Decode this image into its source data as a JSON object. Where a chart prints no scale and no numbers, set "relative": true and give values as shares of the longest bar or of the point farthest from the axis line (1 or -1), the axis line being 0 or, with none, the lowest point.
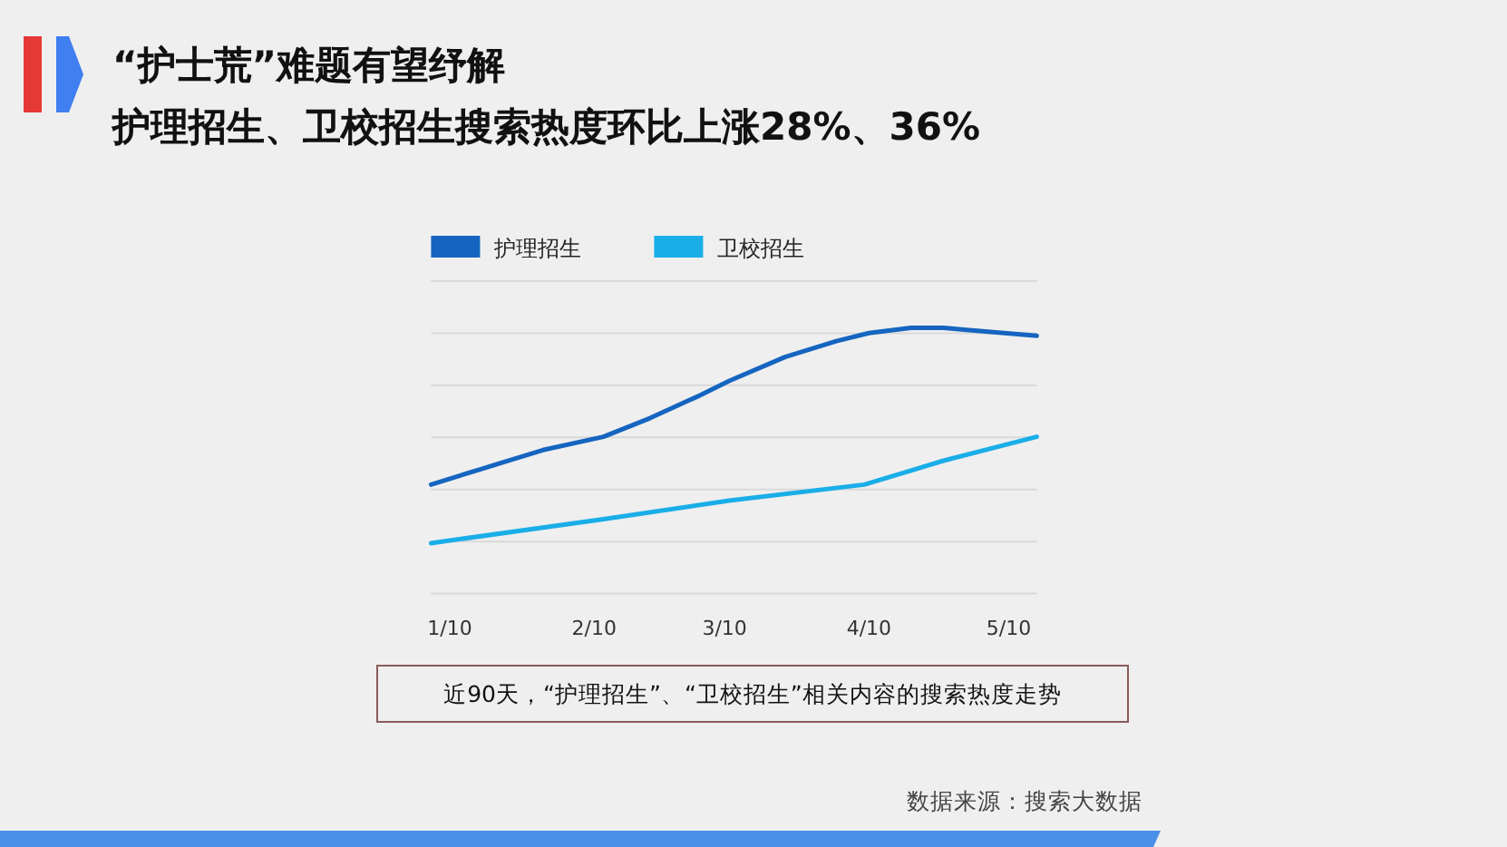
{
  "chart_data": {
    "type": "line",
    "title": "“护士荒”难题有望纾解",
    "subtitle": "护理招生、卫校招生搜索热度环比上涨28%、36%",
    "relative": true,
    "grid": "y",
    "legend": "top left",
    "xlim": [
      "--01-06",
      "--05-16"
    ],
    "xticks": [
      {
        "value": "--01-10",
        "label": "1/10"
      },
      {
        "value": "--02-10",
        "label": "2/10"
      },
      {
        "value": "--03-10",
        "label": "3/10"
      },
      {
        "value": "--04-10",
        "label": "4/10"
      },
      {
        "value": "--05-10",
        "label": "5/10"
      }
    ],
    "series": [
      {
        "name": "护理招生",
        "color": "#1565c0",
        "x": [
          "--01-06",
          "--01-17",
          "--01-30",
          "--02-12",
          "--02-22",
          "--03-04",
          "--03-11",
          "--03-23",
          "--04-03",
          "--04-10",
          "--04-19",
          "--04-26",
          "--05-02",
          "--05-09",
          "--05-16"
        ],
        "values": [
          0.41,
          0.47,
          0.54,
          0.59,
          0.66,
          0.74,
          0.8,
          0.89,
          0.95,
          0.98,
          1.0,
          1.0,
          0.99,
          0.98,
          0.97
        ]
      },
      {
        "name": "卫校招生",
        "color": "#1aaee8",
        "x": [
          "--01-06",
          "--02-12",
          "--03-11",
          "--04-09",
          "--04-26",
          "--05-16"
        ],
        "values": [
          0.19,
          0.28,
          0.35,
          0.41,
          0.5,
          0.59
        ]
      }
    ],
    "annotations": [
      "近90天，“护理招生”、“卫校招生”相关内容的搜索热度走势",
      "数据来源：搜索大数据"
    ]
  }
}
